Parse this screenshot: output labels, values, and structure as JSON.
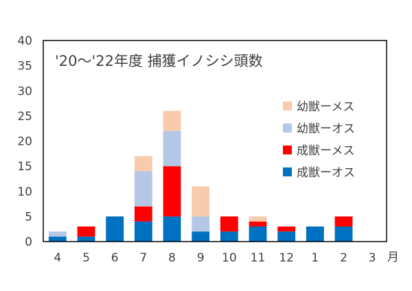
{
  "chart_data": {
    "type": "bar",
    "stacked": true,
    "title": "'20～'22年度  捕獲イノシシ頭数",
    "xlabel": "",
    "ylabel": "",
    "x_unit": "月",
    "categories": [
      "4",
      "5",
      "6",
      "7",
      "8",
      "9",
      "10",
      "11",
      "12",
      "1",
      "2",
      "3"
    ],
    "ylim": [
      0,
      40
    ],
    "yticks": [
      0,
      5,
      10,
      15,
      20,
      25,
      30,
      35,
      40
    ],
    "grid": false,
    "legend_position": "right",
    "series": [
      {
        "name": "成獣ーオス",
        "color": "#0070C0",
        "values": [
          1,
          1,
          5,
          4,
          5,
          2,
          2,
          3,
          2,
          3,
          3,
          0
        ]
      },
      {
        "name": "成獣ーメス",
        "color": "#FF0000",
        "values": [
          0,
          2,
          0,
          3,
          10,
          0,
          3,
          1,
          1,
          0,
          2,
          0
        ]
      },
      {
        "name": "幼獣ーオス",
        "color": "#B4C7E7",
        "values": [
          1,
          0,
          0,
          7,
          7,
          3,
          0,
          0,
          0,
          0,
          0,
          0
        ]
      },
      {
        "name": "幼獣ーメス",
        "color": "#F8CBAD",
        "values": [
          0,
          0,
          0,
          3,
          4,
          6,
          0,
          1,
          0,
          0,
          0,
          0
        ]
      }
    ],
    "legend_order": [
      "幼獣ーメス",
      "幼獣ーオス",
      "成獣ーメス",
      "成獣ーオス"
    ]
  }
}
